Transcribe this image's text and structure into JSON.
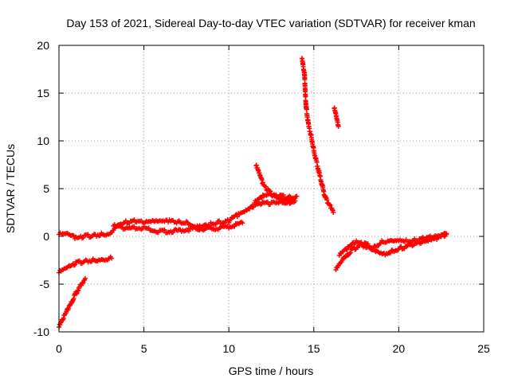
{
  "chart_data": {
    "type": "scatter",
    "title": "Day 153 of 2021, Sidereal Day-to-day VTEC variation (SDTVAR) for receiver kman",
    "xlabel": "GPS time / hours",
    "ylabel": "SDTVAR / TECUs",
    "xlim": [
      0,
      25
    ],
    "ylim": [
      -10,
      20
    ],
    "xticks": [
      0,
      5,
      10,
      15,
      20,
      25
    ],
    "yticks": [
      -10,
      -5,
      0,
      5,
      10,
      15,
      20
    ],
    "grid": true,
    "legend": "none",
    "marker": "plus",
    "series_color": "#ff0000",
    "segments": [
      {
        "name": "baseline-main",
        "points": [
          [
            0,
            0.2
          ],
          [
            0.5,
            0.2
          ],
          [
            1,
            -0.2
          ],
          [
            1.5,
            0
          ],
          [
            2,
            0.1
          ],
          [
            2.5,
            0.2
          ],
          [
            3,
            0.3
          ],
          [
            3.3,
            1.0
          ],
          [
            3.5,
            1.3
          ],
          [
            4,
            1.5
          ],
          [
            4.5,
            1.6
          ],
          [
            5,
            1.4
          ],
          [
            5.5,
            1.5
          ],
          [
            6,
            1.5
          ],
          [
            6.5,
            1.6
          ],
          [
            7,
            1.5
          ],
          [
            7.5,
            1.4
          ],
          [
            8,
            1.1
          ],
          [
            8.5,
            1.2
          ],
          [
            9,
            1.3
          ],
          [
            9.5,
            1.5
          ],
          [
            10,
            1.6
          ],
          [
            10.5,
            2.2
          ],
          [
            11,
            2.6
          ],
          [
            11.5,
            3.2
          ],
          [
            12,
            3.5
          ],
          [
            12.5,
            3.5
          ],
          [
            13,
            3.6
          ],
          [
            13.5,
            3.6
          ],
          [
            13.9,
            3.7
          ]
        ]
      },
      {
        "name": "baseline-upper",
        "points": [
          [
            11.5,
            3.5
          ],
          [
            12,
            4.2
          ],
          [
            12.5,
            4.3
          ],
          [
            13,
            4.2
          ],
          [
            13.5,
            4.1
          ],
          [
            13.9,
            4.0
          ]
        ]
      },
      {
        "name": "baseline-lower",
        "points": [
          [
            3.2,
            1.1
          ],
          [
            4,
            0.8
          ],
          [
            5,
            0.9
          ],
          [
            6,
            0.5
          ],
          [
            7,
            0.6
          ],
          [
            8,
            0.8
          ],
          [
            9,
            0.8
          ],
          [
            10,
            1.0
          ],
          [
            10.8,
            1.4
          ]
        ]
      },
      {
        "name": "hump",
        "points": [
          [
            11.6,
            7.4
          ],
          [
            11.8,
            6.5
          ],
          [
            12,
            5.5
          ],
          [
            12.3,
            4.8
          ],
          [
            12.6,
            4.3
          ],
          [
            13,
            4.0
          ],
          [
            13.5,
            3.9
          ],
          [
            14,
            4.2
          ]
        ]
      },
      {
        "name": "lower-track",
        "points": [
          [
            0,
            -3.8
          ],
          [
            0.3,
            -3.5
          ],
          [
            0.6,
            -3.2
          ],
          [
            1,
            -2.8
          ],
          [
            1.5,
            -2.6
          ],
          [
            2,
            -2.5
          ],
          [
            2.5,
            -2.4
          ],
          [
            3.1,
            -2.3
          ]
        ]
      },
      {
        "name": "steep-line",
        "points": [
          [
            0,
            -9.5
          ],
          [
            0.3,
            -8.4
          ],
          [
            0.6,
            -7.4
          ],
          [
            0.9,
            -6.3
          ],
          [
            1.2,
            -5.3
          ],
          [
            1.55,
            -4.4
          ]
        ]
      },
      {
        "name": "spike",
        "points": [
          [
            14.3,
            18.6
          ],
          [
            14.45,
            17.0
          ],
          [
            14.5,
            15.0
          ],
          [
            14.55,
            13.5
          ],
          [
            14.7,
            11.5
          ],
          [
            14.85,
            10.5
          ],
          [
            15.0,
            9.0
          ],
          [
            15.2,
            7.5
          ],
          [
            15.4,
            6.0
          ],
          [
            15.6,
            4.5
          ],
          [
            15.8,
            3.6
          ],
          [
            16.0,
            3.0
          ],
          [
            16.15,
            2.5
          ]
        ]
      },
      {
        "name": "short-segment",
        "points": [
          [
            16.2,
            13.4
          ],
          [
            16.3,
            12.7
          ],
          [
            16.4,
            11.8
          ],
          [
            16.45,
            11.5
          ]
        ]
      },
      {
        "name": "post-spike",
        "points": [
          [
            16.3,
            -3.5
          ],
          [
            16.5,
            -3.0
          ],
          [
            16.8,
            -2.3
          ],
          [
            17.2,
            -1.5
          ],
          [
            17.7,
            -0.9
          ],
          [
            18.2,
            -1.1
          ],
          [
            18.7,
            -1.5
          ],
          [
            19.2,
            -1.8
          ],
          [
            19.7,
            -1.5
          ],
          [
            20.2,
            -1.2
          ],
          [
            20.8,
            -0.9
          ],
          [
            21.3,
            -0.7
          ],
          [
            21.8,
            -0.5
          ],
          [
            22.3,
            -0.2
          ],
          [
            22.8,
            0.2
          ]
        ]
      },
      {
        "name": "post-spike-upper",
        "points": [
          [
            16.5,
            -2.0
          ],
          [
            17,
            -1.2
          ],
          [
            17.5,
            -0.6
          ],
          [
            18,
            -0.8
          ],
          [
            18.5,
            -1.2
          ],
          [
            19,
            -0.6
          ],
          [
            19.5,
            -0.4
          ],
          [
            20,
            -0.3
          ],
          [
            20.5,
            -0.5
          ],
          [
            21,
            -0.4
          ],
          [
            21.5,
            -0.2
          ],
          [
            22,
            -0.1
          ],
          [
            22.5,
            0.0
          ],
          [
            22.8,
            0.3
          ]
        ]
      }
    ]
  }
}
